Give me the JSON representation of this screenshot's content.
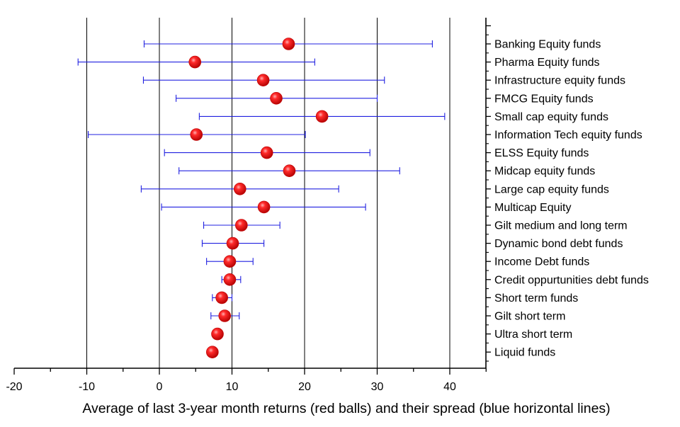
{
  "chart_data": {
    "type": "scatter",
    "xlabel": "Average of last 3-year month returns (red balls) and their spread (blue horizontal lines)",
    "xlim": [
      -20,
      45
    ],
    "xticks": [
      -20,
      -10,
      0,
      10,
      20,
      30,
      40
    ],
    "grid": "vertical lines at x = -10, 0, 10, 20, 30, 40",
    "marker_color": "#e00000",
    "errorbar_color": "#2020e0",
    "gridline_color": "#000000",
    "categories": [
      "Banking Equity funds",
      "Pharma Equity funds",
      "Infrastructure equity funds",
      "FMCG Equity funds",
      "Small cap equity funds",
      "Information Tech equity funds",
      "ELSS Equity funds",
      "Midcap equity funds",
      "Large cap equity funds",
      "Multicap Equity",
      "Gilt medium and long term",
      "Dynamic bond debt funds",
      "Income Debt funds",
      "Credit oppurtunities debt funds",
      "Short term funds",
      "Gilt short term",
      "Ultra short term",
      "Liquid funds"
    ],
    "means": [
      17.8,
      4.9,
      14.3,
      16.1,
      22.4,
      5.1,
      14.8,
      17.9,
      11.1,
      14.4,
      11.3,
      10.1,
      9.7,
      9.7,
      8.6,
      9.0,
      8.0,
      7.3
    ],
    "spread_min": [
      -2.1,
      -11.2,
      -2.2,
      2.3,
      5.5,
      -9.8,
      0.7,
      2.7,
      -2.5,
      0.3,
      6.1,
      5.9,
      6.5,
      8.6,
      7.3,
      7.1,
      7.6,
      6.9
    ],
    "spread_max": [
      37.6,
      21.4,
      31.0,
      30.0,
      39.3,
      20.1,
      29.0,
      33.1,
      24.7,
      28.4,
      16.6,
      14.4,
      12.9,
      11.2,
      10.0,
      11.0,
      8.4,
      7.6
    ]
  }
}
